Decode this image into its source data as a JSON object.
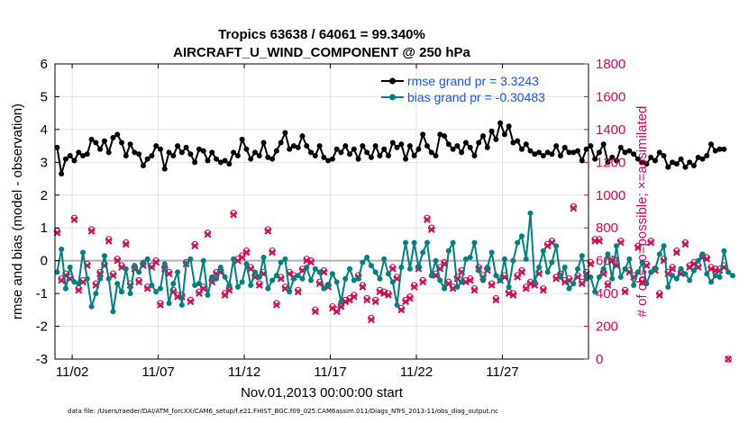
{
  "colors": {
    "rmse": "#000000",
    "bias": "#00807f",
    "counts": "#cc0a55",
    "legend_text": "#1a55e0",
    "zero_line": "#b0b0b0",
    "grid": "#e3e3e3"
  },
  "chart_data": {
    "type": "line",
    "title": "Tropics 63638 / 64061 = 99.340%",
    "subtitle": "AIRCRAFT_U_WIND_COMPONENT @ 250 hPa",
    "xlabel": "Nov.01,2013 00:00:00 start",
    "ylabel_left": "rmse and bias (model - observation)",
    "ylabel_right": "# of obs: o=possible; ×=assimilated",
    "x_range_days": [
      0.5,
      31.5
    ],
    "y_left_range": [
      -3,
      6
    ],
    "y_right_range": [
      0,
      1800
    ],
    "x_ticks": [
      {
        "day": 1.5,
        "label": "11/02"
      },
      {
        "day": 6.5,
        "label": "11/07"
      },
      {
        "day": 11.5,
        "label": "11/12"
      },
      {
        "day": 16.5,
        "label": "11/17"
      },
      {
        "day": 21.5,
        "label": "11/22"
      },
      {
        "day": 26.5,
        "label": "11/27"
      }
    ],
    "y_left_ticks": [
      "-3",
      "-2",
      "-1",
      "0",
      "1",
      "2",
      "3",
      "4",
      "5",
      "6"
    ],
    "y_right_ticks": [
      "0",
      "200",
      "400",
      "600",
      "800",
      "1000",
      "1200",
      "1400",
      "1600",
      "1800"
    ],
    "samples_per_day": 4,
    "x_start_day": 0.625,
    "legend": [
      {
        "name": "rmse grand pr = 3.3243",
        "series": "rmse"
      },
      {
        "name": "bias grand pr = -0.30483",
        "series": "bias"
      }
    ],
    "series": [
      {
        "name": "rmse",
        "axis": "left",
        "values": [
          3.45,
          2.65,
          3.1,
          3.2,
          3.05,
          3.3,
          3.2,
          3.25,
          3.7,
          3.6,
          3.4,
          3.65,
          3.3,
          3.75,
          3.85,
          3.6,
          3.2,
          3.55,
          3.3,
          3.25,
          2.9,
          3.1,
          3.2,
          3.5,
          3.4,
          2.8,
          3.3,
          3.2,
          3.5,
          3.3,
          3.45,
          3.25,
          3.0,
          3.4,
          3.35,
          3.05,
          3.3,
          3.1,
          3.0,
          3.05,
          2.95,
          3.3,
          3.2,
          3.7,
          3.4,
          3.1,
          3.3,
          3.2,
          3.6,
          3.15,
          3.1,
          3.35,
          3.6,
          3.9,
          3.4,
          3.5,
          3.45,
          3.8,
          3.5,
          3.3,
          3.2,
          3.5,
          3.15,
          3.05,
          3.1,
          3.4,
          3.3,
          3.5,
          3.25,
          3.4,
          3.1,
          3.5,
          3.3,
          3.15,
          3.5,
          3.2,
          3.4,
          3.2,
          3.6,
          3.45,
          3.55,
          3.1,
          3.5,
          3.2,
          3.4,
          3.85,
          3.5,
          3.3,
          3.2,
          3.85,
          3.8,
          3.55,
          3.4,
          3.5,
          3.3,
          3.6,
          3.45,
          3.2,
          3.6,
          3.8,
          3.45,
          3.95,
          3.7,
          4.2,
          3.85,
          4.1,
          3.6,
          3.65,
          3.4,
          3.55,
          3.35,
          3.25,
          3.3,
          3.2,
          3.3,
          3.25,
          3.5,
          3.2,
          3.45,
          3.3,
          3.3,
          3.35,
          3.05,
          3.4,
          3.5,
          3.1,
          3.3,
          3.55,
          3.0,
          3.15,
          3.05,
          3.45,
          3.3,
          3.35,
          3.25,
          3.1,
          3.0,
          2.95,
          3.15,
          3.05,
          3.3,
          3.2,
          2.85,
          3.0,
          2.95,
          3.1,
          2.85,
          3.0,
          2.9,
          3.15,
          3.1,
          3.2,
          3.55,
          3.35,
          3.4,
          3.4
        ]
      },
      {
        "name": "bias",
        "axis": "left",
        "values": [
          -0.35,
          0.35,
          -0.85,
          -0.2,
          -0.65,
          -0.7,
          0.25,
          -0.55,
          -1.4,
          -1.0,
          -0.55,
          0.15,
          -0.55,
          -1.55,
          -0.7,
          -0.95,
          -0.25,
          -1.0,
          -0.15,
          -0.35,
          -0.05,
          0.05,
          -0.75,
          -0.95,
          -0.85,
          -0.1,
          -1.3,
          -0.7,
          -0.35,
          -1.35,
          -0.1,
          0.05,
          -0.75,
          -0.7,
          0.0,
          -1.05,
          -0.5,
          -0.55,
          -0.2,
          -0.5,
          -0.75,
          0.05,
          -0.8,
          -0.65,
          -0.1,
          -0.75,
          -0.35,
          -0.5,
          0.1,
          -0.85,
          -0.6,
          -0.45,
          -0.05,
          0.05,
          -0.95,
          -0.55,
          -0.45,
          -0.55,
          -0.2,
          -0.6,
          -0.25,
          -0.35,
          -0.85,
          -0.75,
          -0.4,
          -0.65,
          -1.25,
          -0.55,
          -0.25,
          -0.6,
          -0.55,
          -0.05,
          0.1,
          -0.15,
          -0.35,
          -0.55,
          0.05,
          -0.4,
          -0.65,
          -1.35,
          -0.2,
          0.55,
          -0.25,
          0.55,
          -0.2,
          0.25,
          0.55,
          -0.45,
          0.0,
          -0.6,
          -0.85,
          0.3,
          0.55,
          -0.8,
          -0.65,
          0.05,
          0.1,
          0.55,
          -0.3,
          -0.6,
          -0.2,
          0.25,
          -0.45,
          -0.6,
          0.05,
          -0.8,
          0.0,
          0.55,
          0.75,
          0.05,
          1.45,
          -0.65,
          -0.2,
          0.3,
          -0.35,
          -0.05,
          0.45,
          -0.5,
          -0.2,
          -0.85,
          -0.7,
          -0.25,
          0.15,
          -0.55,
          -0.5,
          -0.95,
          -0.5,
          -0.25,
          0.2,
          -0.55,
          0.45,
          -0.5,
          -0.25,
          0.05,
          -0.75,
          -0.35,
          -0.05,
          -0.7,
          -0.35,
          -0.25,
          0.2,
          0.45,
          -0.8,
          -0.45,
          -0.55,
          -0.25,
          -0.4,
          -0.6,
          -0.3,
          0.0,
          0.2,
          -0.4,
          -0.65,
          -0.45,
          -0.5,
          0.3,
          -0.35,
          -0.45
        ]
      },
      {
        "name": "obs_assimilated",
        "axis": "right",
        "values": [
          770,
          480,
          510,
          490,
          850,
          420,
          470,
          570,
          780,
          450,
          520,
          570,
          720,
          510,
          600,
          560,
          700,
          450,
          550,
          470,
          570,
          430,
          560,
          590,
          330,
          550,
          520,
          410,
          380,
          380,
          580,
          350,
          690,
          400,
          430,
          760,
          470,
          520,
          530,
          390,
          420,
          880,
          600,
          620,
          650,
          550,
          500,
          450,
          520,
          780,
          650,
          330,
          490,
          430,
          520,
          500,
          410,
          540,
          600,
          590,
          290,
          460,
          530,
          440,
          310,
          290,
          320,
          350,
          360,
          380,
          500,
          440,
          360,
          240,
          350,
          410,
          400,
          390,
          550,
          490,
          300,
          350,
          370,
          440,
          550,
          470,
          850,
          790,
          510,
          550,
          580,
          460,
          430,
          490,
          530,
          470,
          480,
          420,
          550,
          500,
          540,
          450,
          360,
          480,
          500,
          400,
          390,
          500,
          530,
          430,
          460,
          450,
          520,
          420,
          690,
          710,
          490,
          510,
          470,
          480,
          920,
          500,
          460,
          520,
          580,
          720,
          720,
          520,
          450,
          600,
          570,
          710,
          410,
          530,
          500,
          680,
          470,
          570,
          710,
          540,
          390,
          600,
          520,
          550,
          650,
          520,
          700,
          560,
          580,
          560,
          620,
          610,
          550,
          540,
          540,
          560,
          0
        ]
      },
      {
        "name": "obs_possible",
        "axis": "right",
        "values": [
          780,
          490,
          520,
          500,
          860,
          430,
          480,
          580,
          790,
          460,
          530,
          580,
          730,
          520,
          610,
          570,
          710,
          460,
          560,
          480,
          580,
          440,
          570,
          600,
          340,
          560,
          530,
          420,
          390,
          390,
          590,
          360,
          700,
          410,
          440,
          770,
          480,
          530,
          540,
          400,
          430,
          890,
          610,
          630,
          660,
          560,
          510,
          460,
          530,
          790,
          660,
          340,
          500,
          440,
          530,
          510,
          420,
          550,
          610,
          600,
          300,
          470,
          540,
          450,
          320,
          300,
          330,
          360,
          370,
          390,
          510,
          450,
          370,
          250,
          360,
          420,
          410,
          400,
          560,
          500,
          310,
          360,
          380,
          450,
          560,
          480,
          860,
          800,
          520,
          560,
          590,
          470,
          440,
          500,
          540,
          480,
          490,
          430,
          560,
          510,
          550,
          460,
          370,
          490,
          510,
          410,
          400,
          510,
          540,
          440,
          470,
          460,
          530,
          430,
          700,
          720,
          500,
          520,
          480,
          490,
          930,
          510,
          470,
          530,
          590,
          730,
          730,
          530,
          460,
          610,
          580,
          720,
          420,
          540,
          510,
          690,
          480,
          580,
          720,
          550,
          400,
          610,
          530,
          560,
          660,
          530,
          710,
          570,
          590,
          570,
          630,
          620,
          560,
          550,
          550,
          570,
          0
        ]
      }
    ]
  },
  "footer": "data file: /Users/raeder/DAI/ATM_forcXX/CAM6_setup/f.e21.FHIST_BGC.f09_025.CAM6assim.011/Diags_NTrS_2013-11/obs_diag_output.nc"
}
